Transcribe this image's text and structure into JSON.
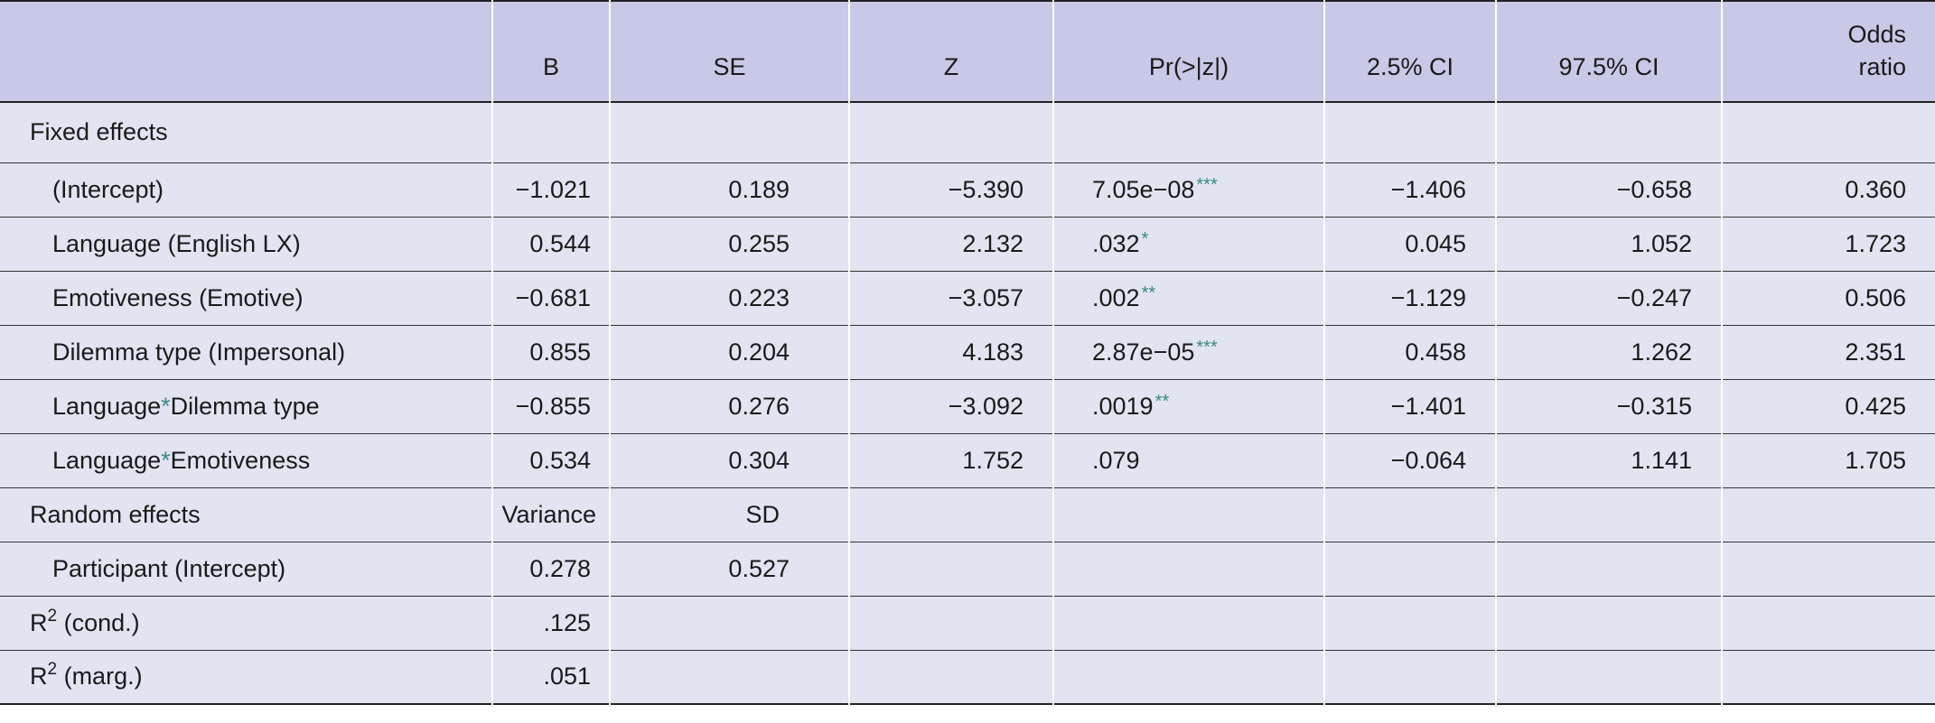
{
  "header": {
    "col_label": "",
    "b": "B",
    "se": "SE",
    "z": "Z",
    "p": "Pr(>|z|)",
    "ci_low": "2.5% CI",
    "ci_high": "97.5% CI",
    "odds_line1": "Odds",
    "odds_line2": "ratio"
  },
  "fixed_effects": {
    "title": "Fixed effects",
    "rows": [
      {
        "label": "(Intercept)",
        "b": "−1.021",
        "se": "0.189",
        "z": "−5.390",
        "p": "7.05e−08",
        "sig": "***",
        "ci_low": "−1.406",
        "ci_high": "−0.658",
        "odds": "0.360"
      },
      {
        "label": "Language (English LX)",
        "b": "0.544",
        "se": "0.255",
        "z": "2.132",
        "p": ".032",
        "sig": "*",
        "ci_low": "0.045",
        "ci_high": "1.052",
        "odds": "1.723"
      },
      {
        "label": "Emotiveness (Emotive)",
        "b": "−0.681",
        "se": "0.223",
        "z": "−3.057",
        "p": ".002",
        "sig": "**",
        "ci_low": "−1.129",
        "ci_high": "−0.247",
        "odds": "0.506"
      },
      {
        "label": "Dilemma type (Impersonal)",
        "b": "0.855",
        "se": "0.204",
        "z": "4.183",
        "p": "2.87e−05",
        "sig": "***",
        "ci_low": "0.458",
        "ci_high": "1.262",
        "odds": "2.351"
      },
      {
        "label_a": "Language",
        "label_star": "*",
        "label_b": "Dilemma type",
        "b": "−0.855",
        "se": "0.276",
        "z": "−3.092",
        "p": ".0019",
        "sig": "**",
        "ci_low": "−1.401",
        "ci_high": "−0.315",
        "odds": "0.425"
      },
      {
        "label_a": "Language",
        "label_star": "*",
        "label_b": "Emotiveness",
        "b": "0.534",
        "se": "0.304",
        "z": "1.752",
        "p": ".079",
        "sig": "",
        "ci_low": "−0.064",
        "ci_high": "1.141",
        "odds": "1.705"
      }
    ]
  },
  "random_effects": {
    "title": "Random effects",
    "variance_label": "Variance",
    "sd_label": "SD",
    "rows": [
      {
        "label": "Participant (Intercept)",
        "variance": "0.278",
        "sd": "0.527"
      }
    ]
  },
  "r2": {
    "cond": {
      "label_base": "R",
      "label_sup": "2",
      "label_rest": " (cond.)",
      "value": ".125"
    },
    "marg": {
      "label_base": "R",
      "label_sup": "2",
      "label_rest": " (marg.)",
      "value": ".051"
    }
  },
  "colors": {
    "header_bg": "#c8c9e6",
    "body_bg": "#e3e4f2",
    "significance_star": "#3a8a82"
  }
}
